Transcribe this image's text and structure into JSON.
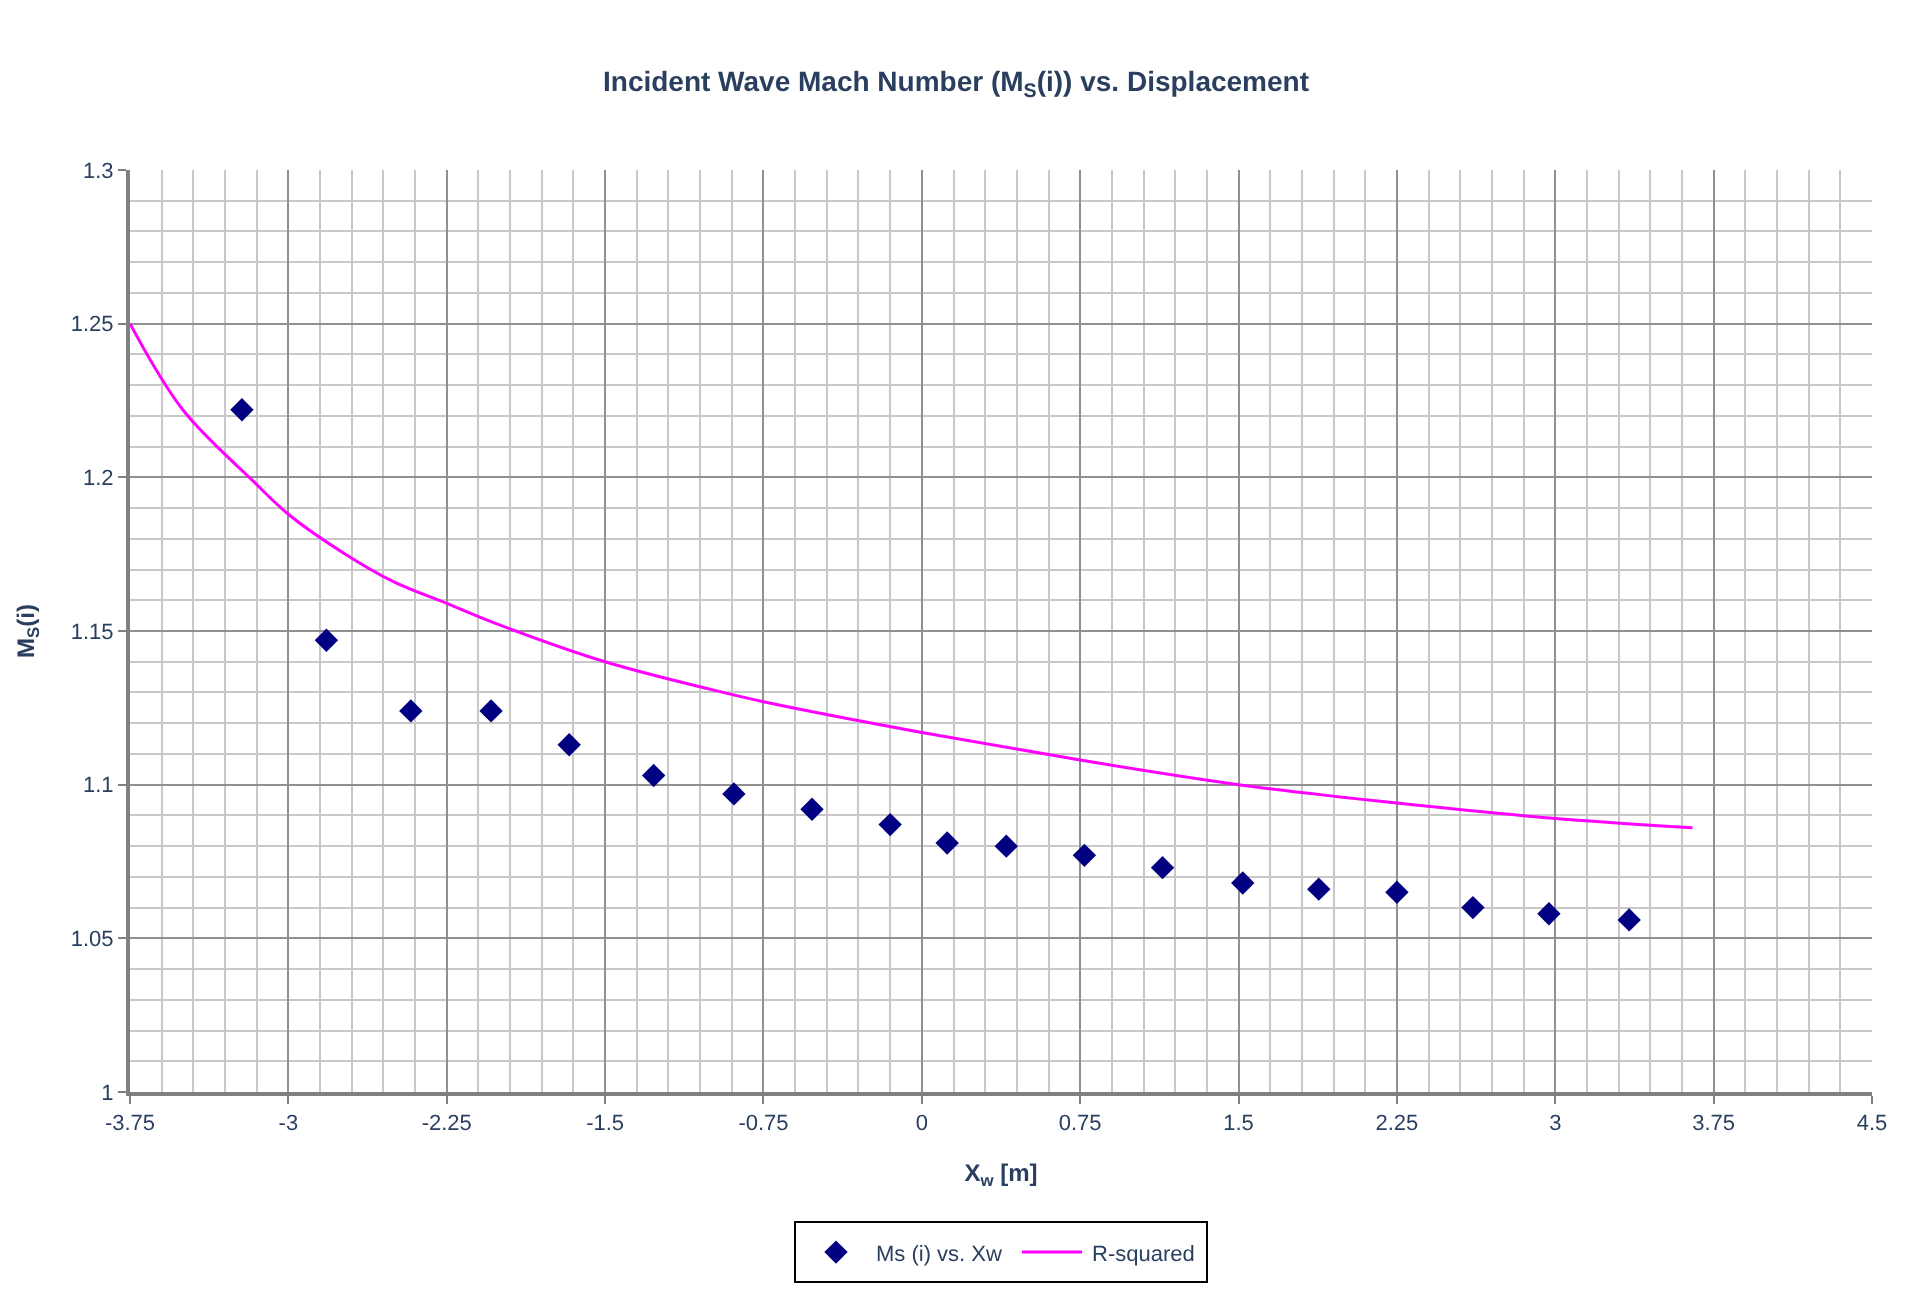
{
  "chart_data": {
    "type": "scatter",
    "title": "Incident Wave Mach Number (M$_{S}$(i)) vs. Displacement",
    "xlabel": "X$_{w}$ [m]",
    "ylabel": "M$_{S}$(i)",
    "series": [
      {
        "name": "Ms (i) vs. Xw",
        "marker": "diamond",
        "color": "#000080",
        "x": [
          -3.22,
          -2.82,
          -2.42,
          -2.04,
          -1.67,
          -1.27,
          -0.89,
          -0.52,
          -0.15,
          0.12,
          0.4,
          0.77,
          1.14,
          1.52,
          1.88,
          2.25,
          2.61,
          2.97,
          3.35
        ],
        "values": [
          1.222,
          1.147,
          1.124,
          1.124,
          1.113,
          1.103,
          1.097,
          1.092,
          1.087,
          1.081,
          1.08,
          1.077,
          1.073,
          1.068,
          1.066,
          1.065,
          1.06,
          1.058,
          1.056
        ]
      },
      {
        "name": "R-squared",
        "type": "line",
        "marker": "none",
        "line_style": "solid",
        "color": "#ff00ff",
        "x": [
          -3.75,
          -3.5,
          -3.17,
          -3.0,
          -2.73,
          -2.5,
          -2.25,
          -2.0,
          -1.5,
          -1.0,
          -0.75,
          0.0,
          0.75,
          1.5,
          2.25,
          3.0,
          3.65
        ],
        "values": [
          1.25,
          1.222,
          1.199,
          1.188,
          1.175,
          1.166,
          1.159,
          1.152,
          1.14,
          1.131,
          1.127,
          1.117,
          1.108,
          1.1,
          1.094,
          1.089,
          1.086
        ]
      }
    ],
    "xlim": [
      -3.75,
      4.5
    ],
    "xticks": [
      -3.75,
      -3,
      -2.25,
      -1.5,
      -0.75,
      0,
      0.75,
      1.5,
      2.25,
      3,
      3.75,
      4.5
    ],
    "ylim": [
      1,
      1.3
    ],
    "yticks": [
      1,
      1.05,
      1.1,
      1.15,
      1.2,
      1.25,
      1.3
    ],
    "grid": true,
    "legend": "bottom"
  }
}
